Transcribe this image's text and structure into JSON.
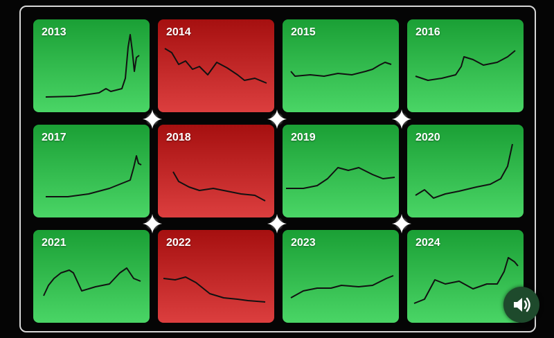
{
  "tiles": [
    {
      "year": "2013",
      "color": "#22cc44"
    },
    {
      "year": "2014",
      "color": "#d41414"
    },
    {
      "year": "2015",
      "color": "#22cc44"
    },
    {
      "year": "2016",
      "color": "#22cc44"
    },
    {
      "year": "2017",
      "color": "#22cc44"
    },
    {
      "year": "2018",
      "color": "#d41414"
    },
    {
      "year": "2019",
      "color": "#22cc44"
    },
    {
      "year": "2020",
      "color": "#22cc44"
    },
    {
      "year": "2021",
      "color": "#22cc44"
    },
    {
      "year": "2022",
      "color": "#d41414"
    },
    {
      "year": "2023",
      "color": "#22cc44"
    },
    {
      "year": "2024",
      "color": "#22cc44"
    }
  ]
}
